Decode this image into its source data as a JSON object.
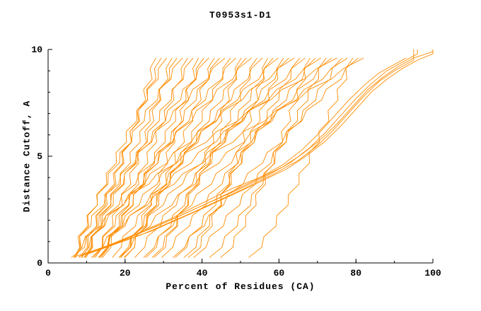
{
  "page": {
    "background": "#ffffff"
  },
  "chart_data": {
    "type": "line",
    "title": "T0953s1-D1",
    "xlabel": "Percent of Residues (CA)",
    "ylabel": "Distance Cutoff, A",
    "xlim": [
      0,
      100
    ],
    "ylim": [
      0,
      10
    ],
    "x_major_ticks": [
      0,
      20,
      40,
      60,
      80,
      100
    ],
    "x_minor_step": 10,
    "y_major_ticks": [
      0,
      5,
      10
    ],
    "y_minor_step": 1,
    "grid": false,
    "legend": "none",
    "line_color": "#ff8c00",
    "axis_color": "#000000",
    "cutoff_start": 0.25,
    "cutoff_end": 9.6,
    "cutoff_step": 0.5,
    "weave_amplitude": 0.7,
    "series_format": [
      "percent_at_cutoff_0",
      "percent_at_cutoff_10",
      "shape_exponent"
    ],
    "series": [
      [
        6.0,
        28.0,
        0.7
      ],
      [
        8.1,
        29.4,
        0.93
      ],
      [
        7.1,
        30.8,
        1.16
      ],
      [
        11.3,
        32.2,
        0.79
      ],
      [
        9.5,
        33.5,
        1.02
      ],
      [
        6.8,
        34.9,
        1.25
      ],
      [
        13.3,
        36.3,
        0.88
      ],
      [
        9.8,
        37.7,
        1.1
      ],
      [
        18.4,
        39.1,
        0.73
      ],
      [
        14.1,
        40.5,
        0.96
      ],
      [
        8.8,
        41.8,
        1.19
      ],
      [
        19.7,
        43.2,
        0.82
      ],
      [
        13.7,
        44.6,
        1.05
      ],
      [
        6.7,
        46.0,
        1.28
      ],
      [
        19.9,
        47.4,
        0.91
      ],
      [
        12.2,
        48.8,
        1.14
      ],
      [
        27.5,
        50.2,
        0.77
      ],
      [
        18.9,
        51.5,
        1.0
      ],
      [
        9.3,
        52.9,
        1.23
      ],
      [
        27.0,
        54.3,
        0.85
      ],
      [
        16.7,
        55.7,
        1.08
      ],
      [
        36.4,
        57.1,
        0.71
      ],
      [
        25.4,
        58.5,
        0.94
      ],
      [
        13.2,
        59.8,
        1.17
      ],
      [
        35.3,
        61.2,
        0.8
      ],
      [
        22.5,
        62.6,
        1.03
      ],
      [
        8.6,
        64.0,
        1.26
      ],
      [
        33.0,
        65.4,
        0.89
      ],
      [
        18.4,
        66.8,
        1.12
      ],
      [
        44.8,
        68.1,
        0.75
      ],
      [
        29.5,
        69.5,
        0.98
      ],
      [
        13.1,
        70.9,
        1.21
      ],
      [
        41.9,
        72.3,
        0.83
      ],
      [
        24.8,
        73.7,
        1.06
      ],
      [
        6.6,
        75.1,
        1.29
      ],
      [
        37.8,
        76.4,
        0.92
      ],
      [
        18.8,
        77.8,
        1.15
      ],
      [
        52.1,
        79.2,
        0.78
      ],
      [
        32.4,
        80.6,
        1.01
      ],
      [
        11.7,
        82.0,
        1.24
      ]
    ],
    "outlier_series": [
      {
        "points": [
          [
            7,
            0.3
          ],
          [
            14,
            0.7
          ],
          [
            22,
            1.3
          ],
          [
            31,
            2.0
          ],
          [
            40,
            2.8
          ],
          [
            48,
            3.5
          ],
          [
            55,
            4.0
          ],
          [
            61,
            4.6
          ],
          [
            66,
            5.3
          ],
          [
            70,
            6.0
          ],
          [
            74,
            6.8
          ],
          [
            78,
            7.6
          ],
          [
            82,
            8.3
          ],
          [
            86,
            8.9
          ],
          [
            90,
            9.3
          ],
          [
            93,
            9.6
          ]
        ]
      },
      {
        "points": [
          [
            8,
            0.3
          ],
          [
            17,
            0.9
          ],
          [
            28,
            1.7
          ],
          [
            39,
            2.6
          ],
          [
            49,
            3.4
          ],
          [
            57,
            4.1
          ],
          [
            63,
            4.7
          ],
          [
            68,
            5.4
          ],
          [
            72,
            6.1
          ],
          [
            76,
            6.9
          ],
          [
            80,
            7.7
          ],
          [
            84,
            8.4
          ],
          [
            88,
            9.0
          ],
          [
            92,
            9.4
          ],
          [
            96,
            9.8
          ],
          [
            96,
            10
          ]
        ]
      },
      {
        "points": [
          [
            9,
            0.4
          ],
          [
            20,
            1.1
          ],
          [
            33,
            2.1
          ],
          [
            45,
            3.1
          ],
          [
            54,
            3.9
          ],
          [
            61,
            4.5
          ],
          [
            66,
            5.1
          ],
          [
            71,
            5.8
          ],
          [
            75,
            6.5
          ],
          [
            79,
            7.3
          ],
          [
            83,
            8.1
          ],
          [
            87,
            8.7
          ],
          [
            91,
            9.2
          ],
          [
            95,
            9.6
          ],
          [
            100,
            9.9
          ],
          [
            100,
            10
          ]
        ]
      },
      {
        "points": [
          [
            10,
            0.4
          ],
          [
            24,
            1.3
          ],
          [
            38,
            2.4
          ],
          [
            50,
            3.4
          ],
          [
            59,
            4.2
          ],
          [
            65,
            4.8
          ],
          [
            70,
            5.5
          ],
          [
            74,
            6.2
          ],
          [
            78,
            7.0
          ],
          [
            82,
            7.8
          ],
          [
            86,
            8.5
          ],
          [
            90,
            9.0
          ],
          [
            95,
            9.5
          ],
          [
            95,
            10
          ]
        ]
      },
      {
        "points": [
          [
            11,
            0.5
          ],
          [
            27,
            1.5
          ],
          [
            42,
            2.7
          ],
          [
            54,
            3.7
          ],
          [
            62,
            4.4
          ],
          [
            67,
            5.0
          ],
          [
            72,
            5.7
          ],
          [
            76,
            6.4
          ],
          [
            80,
            7.2
          ],
          [
            84,
            8.0
          ],
          [
            88,
            8.6
          ],
          [
            92,
            9.1
          ],
          [
            96,
            9.5
          ],
          [
            100,
            9.8
          ],
          [
            100,
            10
          ]
        ]
      }
    ]
  }
}
